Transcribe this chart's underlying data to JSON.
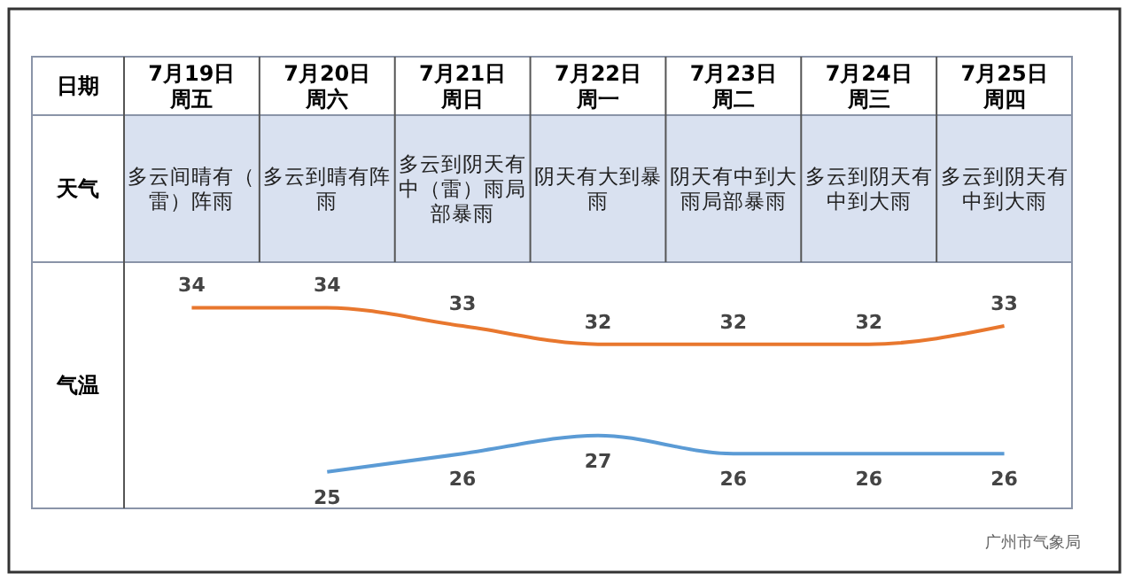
{
  "chart_data": {
    "type": "line",
    "xlabel": "日期",
    "ylabel": "气温",
    "categories": [
      "7月19日周五",
      "7月20日周六",
      "7月21日周日",
      "7月22日周一",
      "7月23日周二",
      "7月24日周三",
      "7月25日周四"
    ],
    "series": [
      {
        "color": "#e8772e",
        "values": [
          34,
          34,
          33,
          32,
          32,
          32,
          33
        ]
      },
      {
        "color": "#5b9bd5",
        "values": [
          null,
          25,
          26,
          27,
          26,
          26,
          26
        ]
      }
    ],
    "ylim": [
      23,
      36.5
    ],
    "data_labels": true,
    "annotations": [
      "天气",
      "多云间晴有（雷）阵雨",
      "多云到晴有阵雨",
      "多云到阴天有中（雷）雨局部暴雨",
      "阴天有大到暴雨",
      "阴天有中到大雨局部暴雨",
      "多云到阴天有中到大雨",
      "多云到阴天有中到大雨",
      "广州市气象局"
    ]
  }
}
